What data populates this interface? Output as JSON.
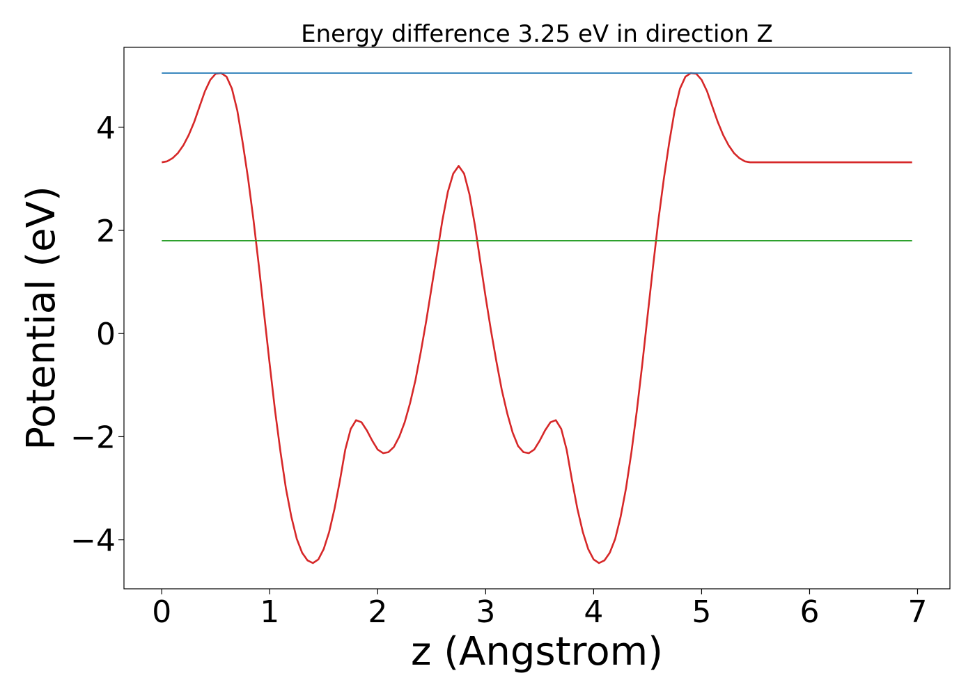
{
  "chart_data": {
    "type": "line",
    "title": "Energy difference 3.25 eV in direction Z",
    "xlabel": "z (Angstrom)",
    "ylabel": "Potential (eV)",
    "xlim": [
      -0.35,
      7.3
    ],
    "ylim": [
      -4.95,
      5.55
    ],
    "xticks": [
      0,
      1,
      2,
      3,
      4,
      5,
      6,
      7
    ],
    "xtick_labels": [
      "0",
      "1",
      "2",
      "3",
      "4",
      "5",
      "6",
      "7"
    ],
    "yticks": [
      -4,
      -2,
      0,
      2,
      4
    ],
    "ytick_labels": [
      "−4",
      "−2",
      "0",
      "2",
      "4"
    ],
    "grid": false,
    "series": [
      {
        "color": "#d62728",
        "x": [
          0,
          0.05,
          0.1,
          0.15,
          0.2,
          0.25,
          0.3,
          0.35,
          0.4,
          0.45,
          0.5,
          0.55,
          0.6,
          0.65,
          0.7,
          0.75,
          0.8,
          0.85,
          0.9,
          0.95,
          1.0,
          1.05,
          1.1,
          1.15,
          1.2,
          1.25,
          1.3,
          1.35,
          1.4,
          1.45,
          1.5,
          1.55,
          1.6,
          1.65,
          1.7,
          1.75,
          1.8,
          1.85,
          1.9,
          1.95,
          2.0,
          2.05,
          2.1,
          2.15,
          2.2,
          2.25,
          2.3,
          2.35,
          2.4,
          2.45,
          2.5,
          2.55,
          2.6,
          2.65,
          2.7,
          2.75,
          2.8,
          2.85,
          2.9,
          2.95,
          3.0,
          3.05,
          3.1,
          3.15,
          3.2,
          3.25,
          3.3,
          3.35,
          3.4,
          3.45,
          3.5,
          3.55,
          3.6,
          3.65,
          3.7,
          3.75,
          3.8,
          3.85,
          3.9,
          3.95,
          4.0,
          4.05,
          4.1,
          4.15,
          4.2,
          4.25,
          4.3,
          4.35,
          4.4,
          4.45,
          4.5,
          4.55,
          4.6,
          4.65,
          4.7,
          4.75,
          4.8,
          4.85,
          4.9,
          4.95,
          5.0,
          5.05,
          5.1,
          5.15,
          5.2,
          5.25,
          5.3,
          5.35,
          5.4,
          5.45,
          5.5,
          5.55,
          5.6,
          5.65,
          5.7,
          5.75,
          5.8,
          5.85,
          5.9,
          5.95,
          6.0,
          6.05,
          6.1,
          6.15,
          6.2,
          6.25,
          6.3,
          6.35,
          6.4,
          6.45,
          6.5,
          6.55,
          6.6,
          6.65,
          6.7,
          6.75,
          6.8,
          6.85,
          6.9,
          6.95
        ],
        "y": [
          3.32,
          3.34,
          3.4,
          3.5,
          3.65,
          3.85,
          4.1,
          4.4,
          4.7,
          4.92,
          5.04,
          5.05,
          4.98,
          4.75,
          4.32,
          3.7,
          3.0,
          2.2,
          1.3,
          0.35,
          -0.6,
          -1.5,
          -2.3,
          -3.0,
          -3.55,
          -3.98,
          -4.25,
          -4.4,
          -4.45,
          -4.38,
          -4.18,
          -3.85,
          -3.4,
          -2.85,
          -2.25,
          -1.85,
          -1.68,
          -1.72,
          -1.88,
          -2.08,
          -2.25,
          -2.32,
          -2.3,
          -2.2,
          -2.0,
          -1.72,
          -1.35,
          -0.9,
          -0.35,
          0.25,
          0.9,
          1.55,
          2.2,
          2.75,
          3.1,
          3.25,
          3.1,
          2.7,
          2.1,
          1.4,
          0.7,
          0.05,
          -0.55,
          -1.1,
          -1.55,
          -1.92,
          -2.18,
          -2.3,
          -2.32,
          -2.25,
          -2.08,
          -1.88,
          -1.72,
          -1.68,
          -1.85,
          -2.25,
          -2.85,
          -3.4,
          -3.85,
          -4.18,
          -4.38,
          -4.45,
          -4.4,
          -4.25,
          -3.98,
          -3.55,
          -3.0,
          -2.3,
          -1.5,
          -0.6,
          0.35,
          1.3,
          2.2,
          3.0,
          3.7,
          4.32,
          4.75,
          4.98,
          5.05,
          5.04,
          4.92,
          4.7,
          4.4,
          4.1,
          3.85,
          3.65,
          3.5,
          3.4,
          3.34,
          3.32,
          3.32,
          3.32,
          3.32,
          3.32,
          3.32,
          3.32,
          3.32,
          3.32,
          3.32,
          3.32,
          3.32,
          3.32,
          3.32,
          3.32,
          3.32,
          3.32,
          3.32,
          3.32,
          3.32,
          3.32,
          3.32,
          3.32,
          3.32,
          3.32,
          3.32,
          3.32,
          3.32,
          3.32,
          3.32,
          3.32
        ]
      },
      {
        "color": "#1f77b4",
        "x": [
          0,
          6.95
        ],
        "y": [
          5.05,
          5.05
        ]
      },
      {
        "color": "#2ca02c",
        "x": [
          0,
          6.95
        ],
        "y": [
          1.8,
          1.8
        ]
      }
    ]
  }
}
